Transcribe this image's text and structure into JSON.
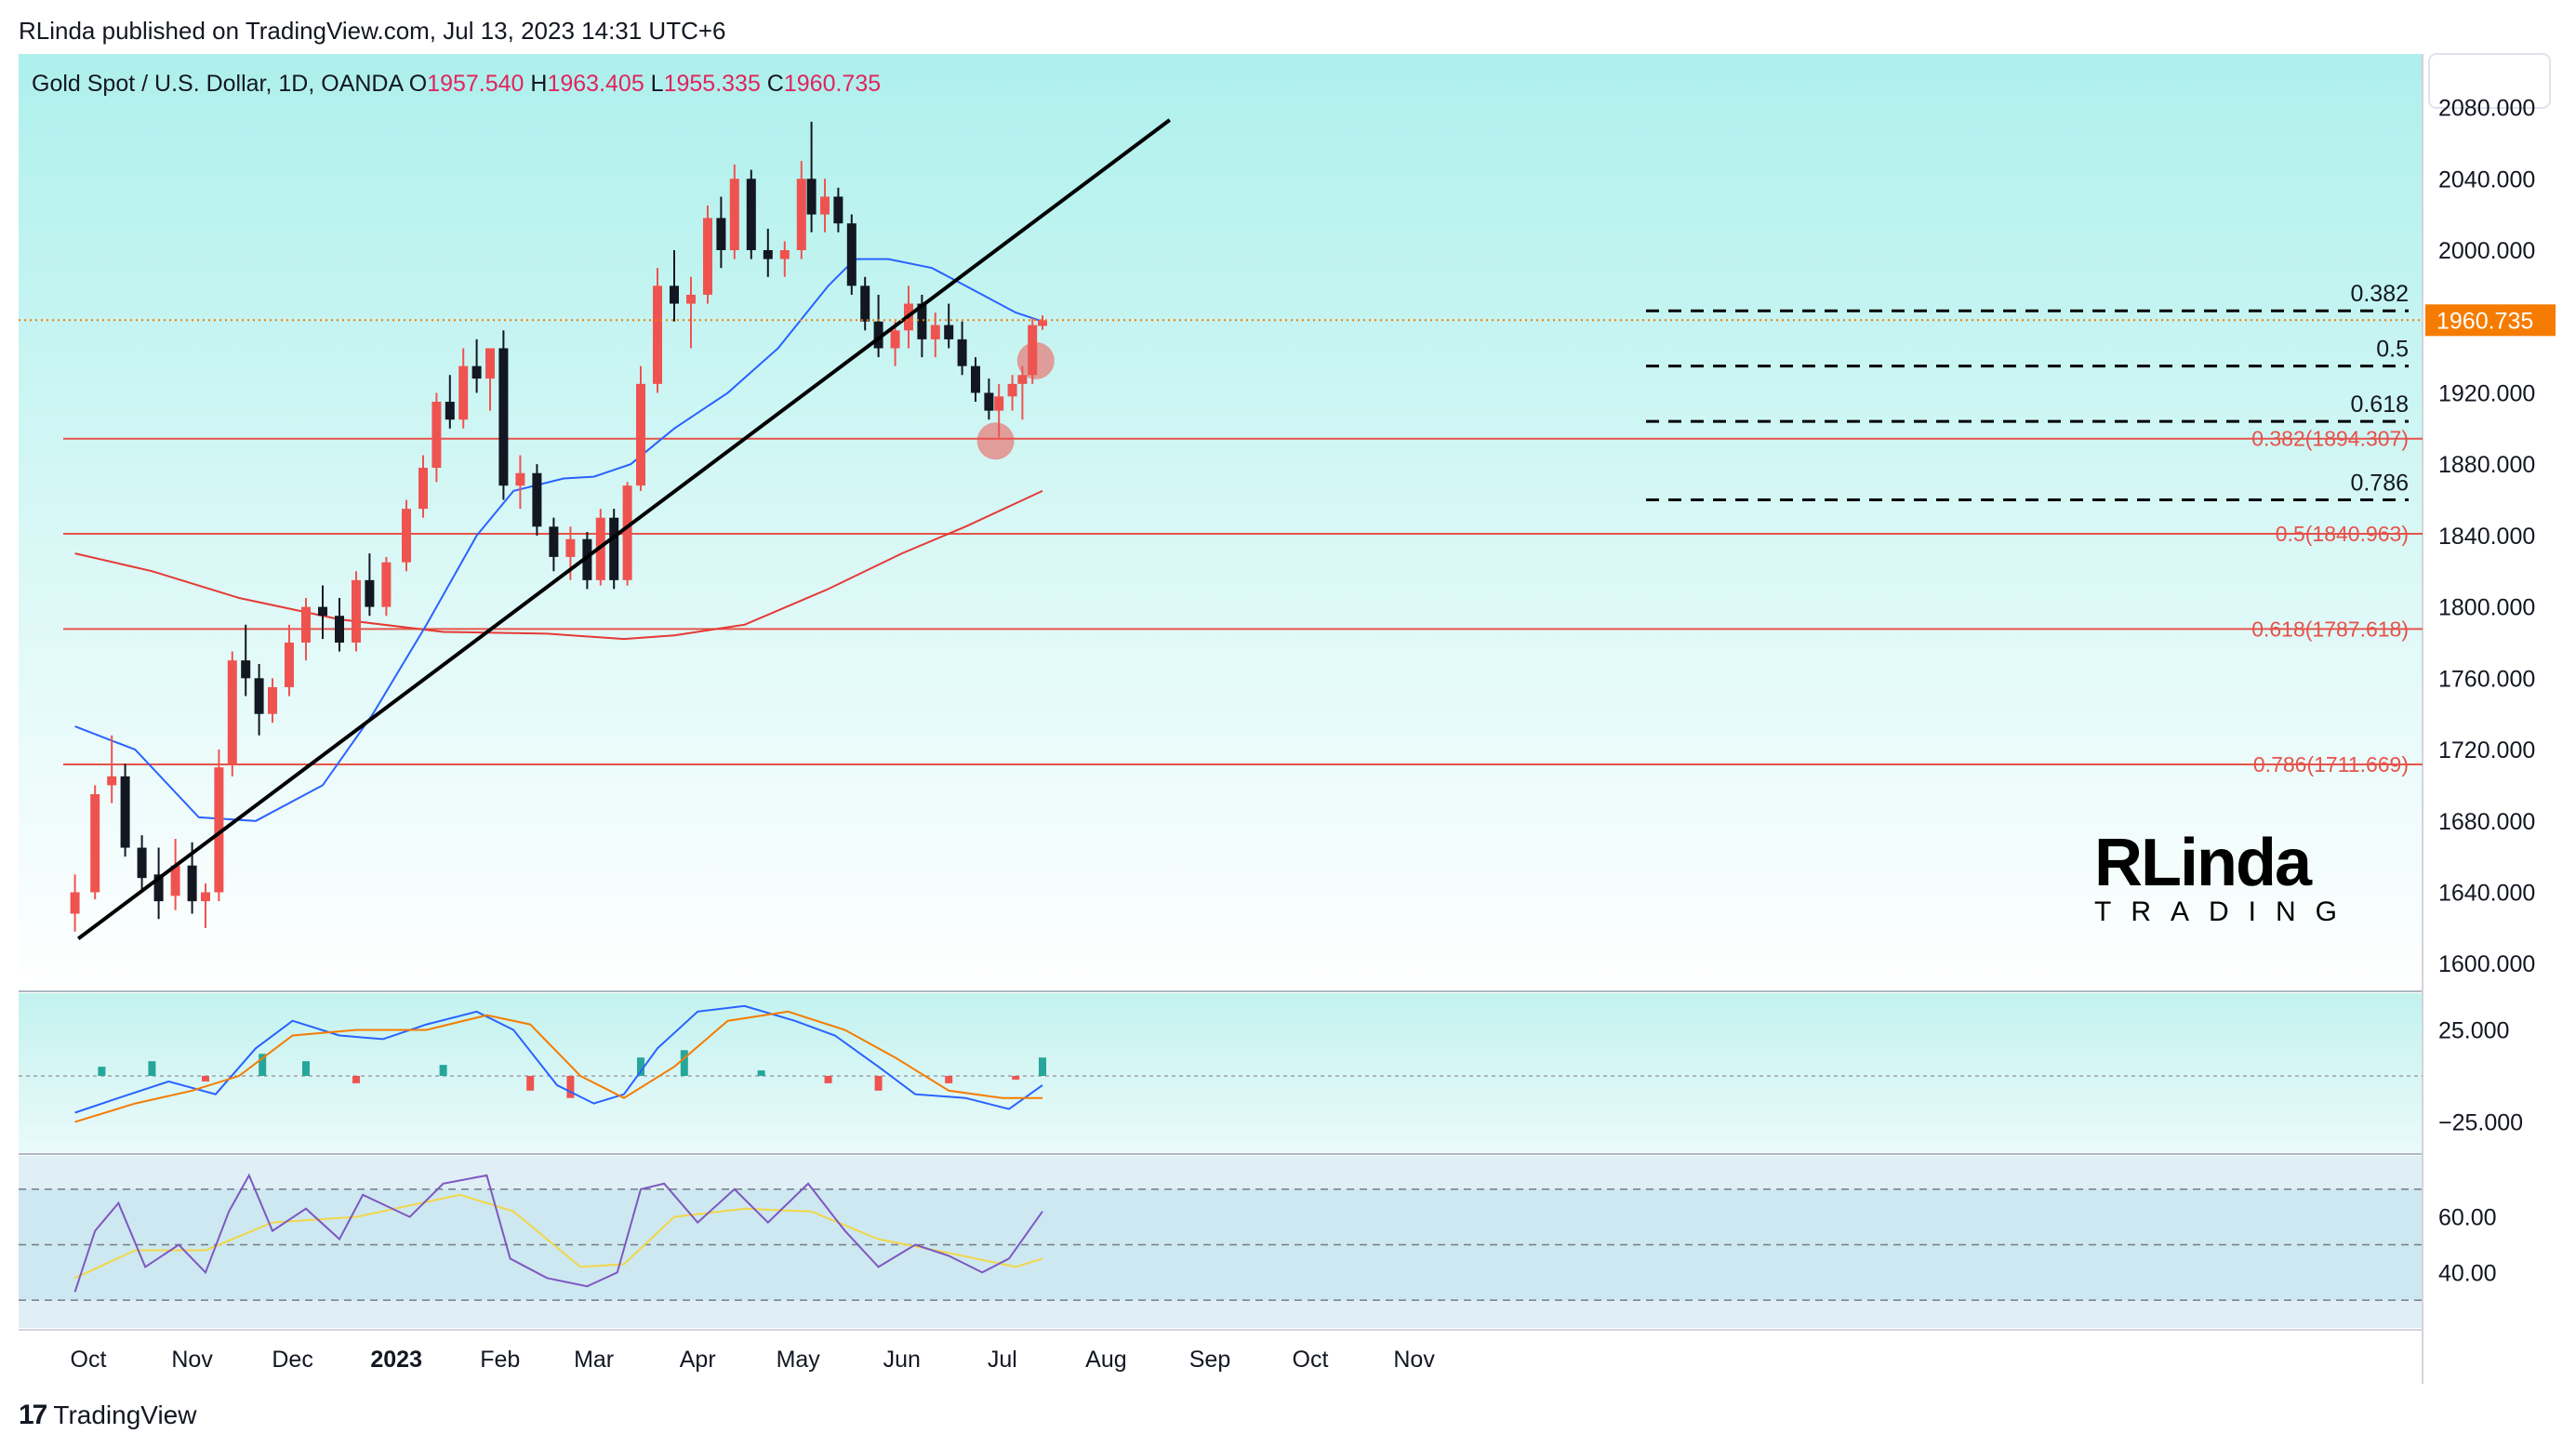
{
  "header": {
    "text": "RLinda published on TradingView.com, Jul 13, 2023 14:31 UTC+6"
  },
  "footer": {
    "brand": "TradingView"
  },
  "watermark": {
    "line1": "RLinda",
    "line2": "TRADING"
  },
  "colors": {
    "up": "#ef5350",
    "down": "#131722",
    "ema_fast": "#2962ff",
    "ema_slow": "#e53935",
    "fib": "#e5534b",
    "price_tag": "#f57c00",
    "bg_top": "#aef0ec",
    "bg_bottom": "#ffffff"
  },
  "chart_data": [
    {
      "type": "candlestick",
      "title": "Gold Spot / U.S. Dollar, 1D, OANDA",
      "ohlc": {
        "o_label": "O",
        "o": "1957.540",
        "h_label": "H",
        "h": "1963.405",
        "l_label": "L",
        "l": "1955.335",
        "c_label": "C",
        "c": "1960.735"
      },
      "last_price": "1960.735",
      "y_ticks": [
        "2080.000",
        "2040.000",
        "2000.000",
        "1960.000",
        "1920.000",
        "1880.000",
        "1840.000",
        "1800.000",
        "1760.000",
        "1720.000",
        "1680.000",
        "1640.000",
        "1600.000"
      ],
      "y_tick_values": [
        2080,
        2040,
        2000,
        1960,
        1920,
        1880,
        1840,
        1800,
        1760,
        1720,
        1680,
        1640,
        1600
      ],
      "ylim": [
        1585,
        2110
      ],
      "x_labels": [
        "Oct",
        "Nov",
        "Dec",
        "2023",
        "Feb",
        "Mar",
        "Apr",
        "May",
        "Jun",
        "Jul",
        "Aug",
        "Sep",
        "Oct",
        "Nov"
      ],
      "x_label_dates": [
        "2022-10-01",
        "2022-11-01",
        "2022-12-01",
        "2023-01-01",
        "2023-02-01",
        "2023-03-01",
        "2023-04-01",
        "2023-05-01",
        "2023-06-01",
        "2023-07-01",
        "2023-08-01",
        "2023-09-01",
        "2023-10-01",
        "2023-11-01"
      ],
      "fib_levels_major": [
        {
          "label": "0.382(1894.307)",
          "value": 1894.307
        },
        {
          "label": "0.5(1840.963)",
          "value": 1840.963
        },
        {
          "label": "0.618(1787.618)",
          "value": 1787.618
        },
        {
          "label": "0.786(1711.669)",
          "value": 1711.669
        }
      ],
      "fib_levels_minor": [
        {
          "label": "0.382",
          "value": 1966
        },
        {
          "label": "0.5",
          "value": 1935
        },
        {
          "label": "0.618",
          "value": 1904
        },
        {
          "label": "0.786",
          "value": 1860
        }
      ],
      "trendline": {
        "from": {
          "date": "2022-09-28",
          "value": 1614
        },
        "to": {
          "date": "2023-08-20",
          "value": 2073
        }
      },
      "ema_fast": [
        [
          "2022-09-27",
          1733
        ],
        [
          "2022-10-15",
          1720
        ],
        [
          "2022-11-03",
          1682
        ],
        [
          "2022-11-20",
          1680
        ],
        [
          "2022-12-10",
          1700
        ],
        [
          "2022-12-25",
          1740
        ],
        [
          "2023-01-10",
          1790
        ],
        [
          "2023-01-25",
          1840
        ],
        [
          "2023-02-05",
          1865
        ],
        [
          "2023-02-20",
          1872
        ],
        [
          "2023-03-01",
          1873
        ],
        [
          "2023-03-12",
          1880
        ],
        [
          "2023-03-25",
          1900
        ],
        [
          "2023-04-10",
          1920
        ],
        [
          "2023-04-25",
          1945
        ],
        [
          "2023-05-10",
          1980
        ],
        [
          "2023-05-18",
          1995
        ],
        [
          "2023-05-28",
          1995
        ],
        [
          "2023-06-10",
          1990
        ],
        [
          "2023-06-25",
          1975
        ],
        [
          "2023-07-05",
          1965
        ],
        [
          "2023-07-13",
          1960
        ]
      ],
      "ema_slow": [
        [
          "2022-09-27",
          1830
        ],
        [
          "2022-10-20",
          1820
        ],
        [
          "2022-11-15",
          1805
        ],
        [
          "2022-12-15",
          1793
        ],
        [
          "2023-01-15",
          1786
        ],
        [
          "2023-02-15",
          1785
        ],
        [
          "2023-03-10",
          1782
        ],
        [
          "2023-03-25",
          1784
        ],
        [
          "2023-04-15",
          1790
        ],
        [
          "2023-05-10",
          1810
        ],
        [
          "2023-06-01",
          1830
        ],
        [
          "2023-06-20",
          1845
        ],
        [
          "2023-07-13",
          1865
        ]
      ],
      "candles": [
        [
          "2022-09-27",
          1628,
          1650,
          1618,
          1640
        ],
        [
          "2022-10-03",
          1640,
          1700,
          1636,
          1695
        ],
        [
          "2022-10-08",
          1700,
          1728,
          1690,
          1705
        ],
        [
          "2022-10-12",
          1705,
          1712,
          1660,
          1665
        ],
        [
          "2022-10-17",
          1665,
          1672,
          1640,
          1648
        ],
        [
          "2022-10-22",
          1650,
          1665,
          1625,
          1635
        ],
        [
          "2022-10-27",
          1638,
          1670,
          1630,
          1655
        ],
        [
          "2022-11-01",
          1655,
          1668,
          1628,
          1635
        ],
        [
          "2022-11-05",
          1635,
          1645,
          1620,
          1640
        ],
        [
          "2022-11-09",
          1640,
          1720,
          1635,
          1710
        ],
        [
          "2022-11-13",
          1712,
          1775,
          1705,
          1770
        ],
        [
          "2022-11-17",
          1770,
          1790,
          1750,
          1760
        ],
        [
          "2022-11-21",
          1760,
          1768,
          1728,
          1740
        ],
        [
          "2022-11-25",
          1740,
          1760,
          1735,
          1755
        ],
        [
          "2022-11-30",
          1755,
          1790,
          1750,
          1780
        ],
        [
          "2022-12-05",
          1780,
          1805,
          1770,
          1800
        ],
        [
          "2022-12-10",
          1800,
          1812,
          1782,
          1795
        ],
        [
          "2022-12-15",
          1795,
          1805,
          1775,
          1780
        ],
        [
          "2022-12-20",
          1780,
          1820,
          1775,
          1815
        ],
        [
          "2022-12-24",
          1815,
          1830,
          1795,
          1800
        ],
        [
          "2022-12-29",
          1800,
          1828,
          1795,
          1825
        ],
        [
          "2023-01-04",
          1825,
          1860,
          1820,
          1855
        ],
        [
          "2023-01-09",
          1855,
          1885,
          1850,
          1878
        ],
        [
          "2023-01-13",
          1878,
          1920,
          1870,
          1915
        ],
        [
          "2023-01-17",
          1915,
          1930,
          1900,
          1905
        ],
        [
          "2023-01-21",
          1905,
          1945,
          1900,
          1935
        ],
        [
          "2023-01-25",
          1935,
          1950,
          1920,
          1928
        ],
        [
          "2023-01-29",
          1928,
          1945,
          1910,
          1945
        ],
        [
          "2023-02-02",
          1945,
          1955,
          1860,
          1868
        ],
        [
          "2023-02-07",
          1868,
          1885,
          1855,
          1875
        ],
        [
          "2023-02-12",
          1875,
          1880,
          1840,
          1845
        ],
        [
          "2023-02-17",
          1845,
          1850,
          1820,
          1828
        ],
        [
          "2023-02-22",
          1828,
          1845,
          1815,
          1838
        ],
        [
          "2023-02-27",
          1838,
          1842,
          1810,
          1815
        ],
        [
          "2023-03-03",
          1815,
          1855,
          1812,
          1850
        ],
        [
          "2023-03-07",
          1850,
          1855,
          1810,
          1815
        ],
        [
          "2023-03-11",
          1815,
          1870,
          1812,
          1868
        ],
        [
          "2023-03-15",
          1868,
          1935,
          1865,
          1925
        ],
        [
          "2023-03-20",
          1925,
          1990,
          1920,
          1980
        ],
        [
          "2023-03-25",
          1980,
          2000,
          1960,
          1970
        ],
        [
          "2023-03-30",
          1970,
          1985,
          1945,
          1975
        ],
        [
          "2023-04-04",
          1975,
          2025,
          1970,
          2018
        ],
        [
          "2023-04-08",
          2018,
          2030,
          1990,
          2000
        ],
        [
          "2023-04-12",
          2000,
          2048,
          1995,
          2040
        ],
        [
          "2023-04-17",
          2040,
          2045,
          1995,
          2000
        ],
        [
          "2023-04-22",
          2000,
          2012,
          1985,
          1995
        ],
        [
          "2023-04-27",
          1995,
          2005,
          1985,
          2000
        ],
        [
          "2023-05-02",
          2000,
          2050,
          1995,
          2040
        ],
        [
          "2023-05-05",
          2040,
          2072,
          2010,
          2020
        ],
        [
          "2023-05-09",
          2020,
          2040,
          2010,
          2030
        ],
        [
          "2023-05-13",
          2030,
          2035,
          2010,
          2015
        ],
        [
          "2023-05-17",
          2015,
          2020,
          1975,
          1980
        ],
        [
          "2023-05-21",
          1980,
          1985,
          1955,
          1960
        ],
        [
          "2023-05-25",
          1960,
          1975,
          1940,
          1945
        ],
        [
          "2023-05-30",
          1945,
          1960,
          1935,
          1955
        ],
        [
          "2023-06-03",
          1955,
          1980,
          1945,
          1970
        ],
        [
          "2023-06-07",
          1970,
          1975,
          1940,
          1950
        ],
        [
          "2023-06-11",
          1950,
          1965,
          1940,
          1958
        ],
        [
          "2023-06-15",
          1958,
          1970,
          1945,
          1950
        ],
        [
          "2023-06-19",
          1950,
          1960,
          1930,
          1935
        ],
        [
          "2023-06-23",
          1935,
          1940,
          1915,
          1920
        ],
        [
          "2023-06-27",
          1920,
          1928,
          1905,
          1910
        ],
        [
          "2023-06-30",
          1910,
          1925,
          1895,
          1918
        ],
        [
          "2023-07-04",
          1918,
          1930,
          1910,
          1925
        ],
        [
          "2023-07-07",
          1925,
          1935,
          1905,
          1930
        ],
        [
          "2023-07-10",
          1930,
          1962,
          1925,
          1958
        ],
        [
          "2023-07-13",
          1957.54,
          1963.405,
          1955.335,
          1960.735
        ]
      ]
    },
    {
      "type": "line",
      "name": "MACD",
      "y_ticks": [
        "25.000",
        "−25.000"
      ],
      "y_tick_values": [
        25,
        -25
      ],
      "ylim": [
        -42,
        45
      ],
      "macd": [
        [
          "2022-09-27",
          -20
        ],
        [
          "2022-10-10",
          -12
        ],
        [
          "2022-10-25",
          -3
        ],
        [
          "2022-11-08",
          -10
        ],
        [
          "2022-11-20",
          15
        ],
        [
          "2022-12-01",
          30
        ],
        [
          "2022-12-15",
          22
        ],
        [
          "2022-12-28",
          20
        ],
        [
          "2023-01-10",
          28
        ],
        [
          "2023-01-25",
          35
        ],
        [
          "2023-02-05",
          25
        ],
        [
          "2023-02-18",
          -5
        ],
        [
          "2023-03-01",
          -15
        ],
        [
          "2023-03-10",
          -10
        ],
        [
          "2023-03-20",
          15
        ],
        [
          "2023-04-01",
          35
        ],
        [
          "2023-04-15",
          38
        ],
        [
          "2023-04-30",
          30
        ],
        [
          "2023-05-12",
          22
        ],
        [
          "2023-05-25",
          5
        ],
        [
          "2023-06-05",
          -10
        ],
        [
          "2023-06-20",
          -12
        ],
        [
          "2023-07-03",
          -18
        ],
        [
          "2023-07-13",
          -5
        ]
      ],
      "signal": [
        [
          "2022-09-27",
          -25
        ],
        [
          "2022-10-15",
          -15
        ],
        [
          "2022-11-01",
          -8
        ],
        [
          "2022-11-15",
          0
        ],
        [
          "2022-12-01",
          22
        ],
        [
          "2022-12-20",
          25
        ],
        [
          "2023-01-10",
          25
        ],
        [
          "2023-01-28",
          33
        ],
        [
          "2023-02-10",
          28
        ],
        [
          "2023-02-25",
          0
        ],
        [
          "2023-03-10",
          -12
        ],
        [
          "2023-03-25",
          5
        ],
        [
          "2023-04-10",
          30
        ],
        [
          "2023-04-28",
          35
        ],
        [
          "2023-05-15",
          25
        ],
        [
          "2023-05-30",
          10
        ],
        [
          "2023-06-15",
          -8
        ],
        [
          "2023-07-01",
          -12
        ],
        [
          "2023-07-13",
          -12
        ]
      ],
      "hist": [
        [
          "2022-10-05",
          5
        ],
        [
          "2022-10-20",
          8
        ],
        [
          "2022-11-05",
          -3
        ],
        [
          "2022-11-22",
          12
        ],
        [
          "2022-12-05",
          8
        ],
        [
          "2022-12-20",
          -4
        ],
        [
          "2023-01-15",
          6
        ],
        [
          "2023-02-10",
          -8
        ],
        [
          "2023-02-22",
          -12
        ],
        [
          "2023-03-15",
          10
        ],
        [
          "2023-03-28",
          14
        ],
        [
          "2023-04-20",
          3
        ],
        [
          "2023-05-10",
          -4
        ],
        [
          "2023-05-25",
          -8
        ],
        [
          "2023-06-15",
          -4
        ],
        [
          "2023-07-05",
          -2
        ],
        [
          "2023-07-13",
          10
        ]
      ]
    },
    {
      "type": "line",
      "name": "RSI",
      "y_ticks": [
        "60.00",
        "40.00"
      ],
      "y_tick_values": [
        60,
        40
      ],
      "ylim": [
        20,
        82
      ],
      "bands": [
        70,
        50,
        30
      ],
      "rsi": [
        [
          "2022-09-27",
          33
        ],
        [
          "2022-10-03",
          55
        ],
        [
          "2022-10-10",
          65
        ],
        [
          "2022-10-18",
          42
        ],
        [
          "2022-10-28",
          50
        ],
        [
          "2022-11-05",
          40
        ],
        [
          "2022-11-12",
          62
        ],
        [
          "2022-11-18",
          75
        ],
        [
          "2022-11-25",
          55
        ],
        [
          "2022-12-05",
          63
        ],
        [
          "2022-12-15",
          52
        ],
        [
          "2022-12-22",
          68
        ],
        [
          "2023-01-05",
          60
        ],
        [
          "2023-01-15",
          72
        ],
        [
          "2023-01-28",
          75
        ],
        [
          "2023-02-04",
          45
        ],
        [
          "2023-02-15",
          38
        ],
        [
          "2023-02-27",
          35
        ],
        [
          "2023-03-08",
          40
        ],
        [
          "2023-03-15",
          70
        ],
        [
          "2023-03-22",
          72
        ],
        [
          "2023-04-01",
          58
        ],
        [
          "2023-04-12",
          70
        ],
        [
          "2023-04-22",
          58
        ],
        [
          "2023-05-04",
          72
        ],
        [
          "2023-05-15",
          55
        ],
        [
          "2023-05-25",
          42
        ],
        [
          "2023-06-05",
          50
        ],
        [
          "2023-06-15",
          46
        ],
        [
          "2023-06-25",
          40
        ],
        [
          "2023-07-03",
          45
        ],
        [
          "2023-07-13",
          62
        ]
      ],
      "rsi_ma": [
        [
          "2022-09-27",
          38
        ],
        [
          "2022-10-15",
          48
        ],
        [
          "2022-11-05",
          48
        ],
        [
          "2022-11-25",
          58
        ],
        [
          "2022-12-20",
          60
        ],
        [
          "2023-01-20",
          68
        ],
        [
          "2023-02-05",
          62
        ],
        [
          "2023-02-25",
          42
        ],
        [
          "2023-03-10",
          43
        ],
        [
          "2023-03-25",
          60
        ],
        [
          "2023-04-15",
          63
        ],
        [
          "2023-05-05",
          62
        ],
        [
          "2023-05-25",
          52
        ],
        [
          "2023-06-15",
          47
        ],
        [
          "2023-07-05",
          42
        ],
        [
          "2023-07-13",
          45
        ]
      ]
    }
  ]
}
